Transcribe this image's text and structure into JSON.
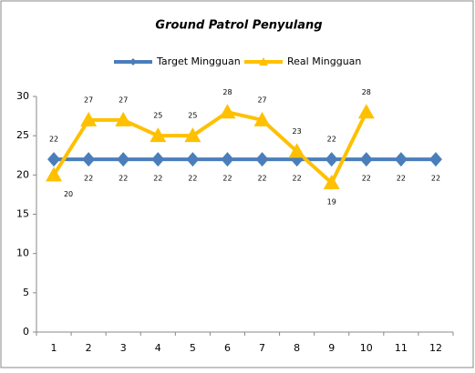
{
  "chart_data": {
    "type": "line",
    "title": "Ground Patrol Penyulang",
    "categories": [
      1,
      2,
      3,
      4,
      5,
      6,
      7,
      8,
      9,
      10,
      11,
      12
    ],
    "series": [
      {
        "name": "Target Mingguan",
        "color": "#4a7ebb",
        "marker": "diamond",
        "values": [
          22,
          22,
          22,
          22,
          22,
          22,
          22,
          22,
          22,
          22,
          22,
          22
        ]
      },
      {
        "name": "Real Mingguan",
        "color": "#ffc000",
        "marker": "triangle",
        "values": [
          20,
          27,
          27,
          25,
          25,
          28,
          27,
          23,
          19,
          28,
          null,
          null
        ]
      }
    ],
    "ylim": [
      0,
      30
    ],
    "yticks": [
      0,
      5,
      10,
      15,
      20,
      25,
      30
    ],
    "grid": false,
    "legend": "top"
  }
}
